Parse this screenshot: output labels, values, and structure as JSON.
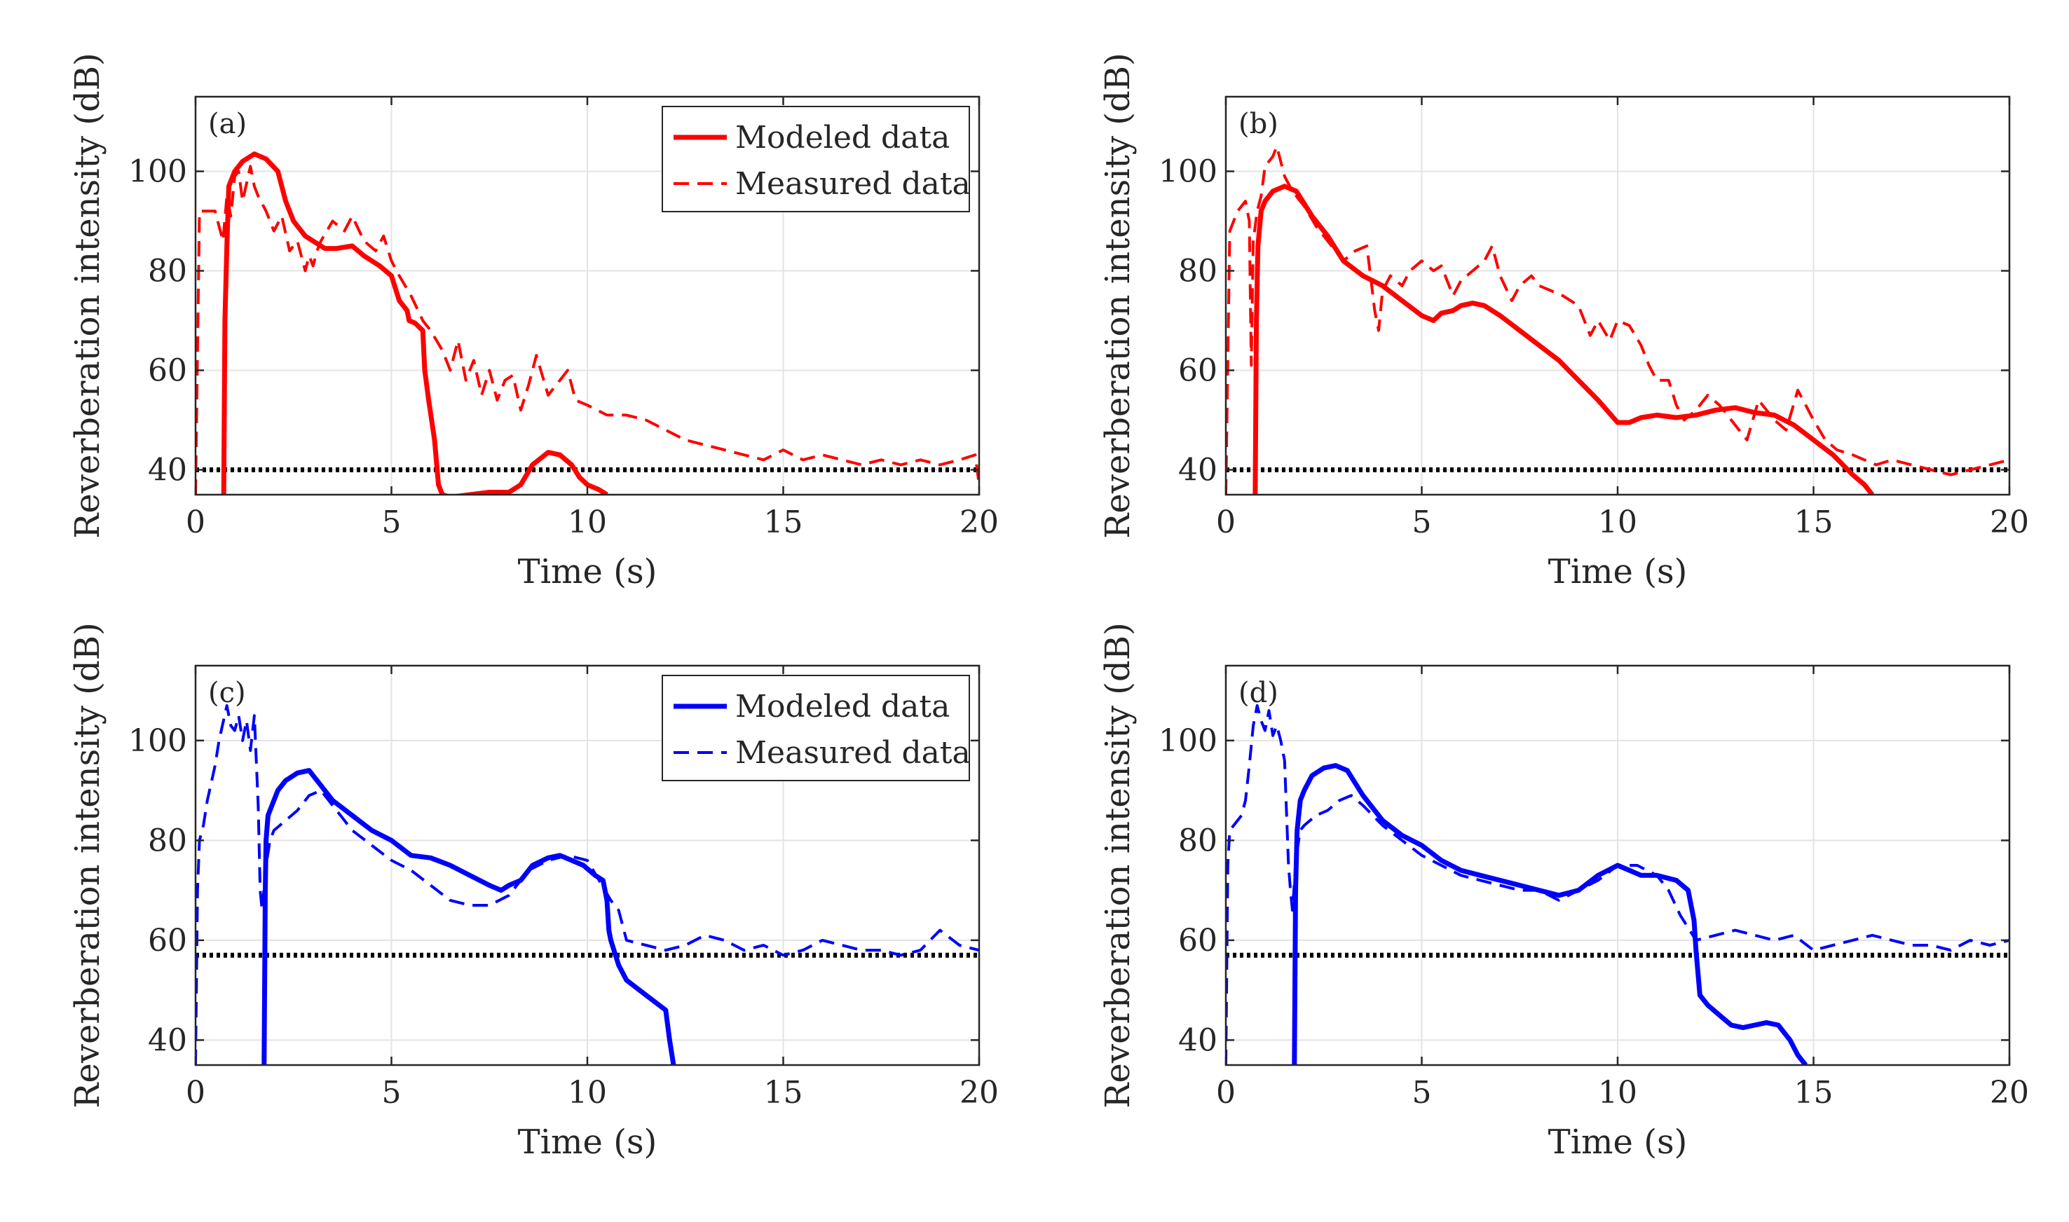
{
  "figure": {
    "panel_count": 4
  },
  "chart_data": [
    {
      "type": "line",
      "panel_label": "(a)",
      "xlabel": "Time (s)",
      "ylabel": "Reverberation intensity (dB)",
      "xlim": [
        0,
        20
      ],
      "ylim": [
        35,
        115
      ],
      "xticks": [
        0,
        5,
        10,
        15,
        20
      ],
      "yticks": [
        40,
        60,
        80,
        100
      ],
      "grid": true,
      "legend": {
        "placement": "top-right",
        "entries": [
          "Modeled data",
          "Measured data"
        ]
      },
      "color": "#ff0000",
      "threshold": 40,
      "series": [
        {
          "name": "Modeled data",
          "style": "solid",
          "x": [
            0.72,
            0.75,
            0.8,
            0.85,
            1.0,
            1.2,
            1.5,
            1.8,
            2.1,
            2.3,
            2.5,
            2.8,
            3.0,
            3.3,
            3.6,
            4.0,
            4.3,
            4.7,
            5.0,
            5.2,
            5.4,
            5.45,
            5.6,
            5.8,
            5.85,
            5.95,
            6.1,
            6.2,
            6.3,
            6.5,
            7.0,
            7.5,
            8.0,
            8.3,
            8.6,
            9.0,
            9.3,
            9.6,
            9.8,
            10.0,
            10.3,
            10.5
          ],
          "y": [
            35,
            70,
            85,
            97,
            100,
            102,
            103.5,
            102.5,
            100,
            94,
            90,
            87,
            86,
            84.5,
            84.5,
            85,
            83,
            81,
            79,
            74,
            72,
            70,
            69.5,
            68,
            60,
            54,
            46,
            37,
            35,
            34.5,
            35,
            35.5,
            35.5,
            37,
            41,
            43.5,
            43,
            41,
            38.5,
            37,
            36,
            35
          ]
        },
        {
          "name": "Measured data",
          "style": "dashed",
          "x": [
            0.0,
            0.1,
            0.2,
            0.5,
            0.6,
            0.7,
            0.8,
            0.9,
            1.0,
            1.1,
            1.2,
            1.4,
            1.5,
            1.6,
            1.8,
            2.0,
            2.2,
            2.4,
            2.6,
            2.8,
            2.9,
            3.0,
            3.1,
            3.2,
            3.5,
            3.8,
            4.0,
            4.3,
            4.6,
            4.8,
            5.0,
            5.2,
            5.5,
            5.8,
            6.0,
            6.3,
            6.5,
            6.7,
            6.9,
            7.1,
            7.3,
            7.5,
            7.7,
            7.9,
            8.1,
            8.3,
            8.5,
            8.7,
            9.0,
            9.2,
            9.5,
            9.7,
            10.0,
            10.5,
            11.0,
            11.5,
            12.0,
            12.5,
            13.0,
            13.5,
            14.0,
            14.5,
            15.0,
            15.5,
            16.0,
            16.5,
            17.0,
            17.5,
            18.0,
            18.5,
            19.0,
            19.5,
            19.9,
            20.0
          ],
          "y": [
            35,
            92,
            92,
            92,
            89,
            86,
            95,
            91,
            99,
            100,
            94,
            101,
            97,
            95,
            92,
            88,
            91,
            84,
            86,
            80,
            83,
            81,
            84,
            86,
            90,
            88,
            91,
            86,
            84,
            87,
            82,
            79,
            75,
            70,
            68,
            64,
            60,
            66,
            58,
            62,
            55,
            60,
            54,
            58,
            59,
            52,
            57,
            63,
            55,
            57,
            60,
            54,
            53,
            51,
            51,
            50,
            48,
            46,
            45,
            44,
            43,
            42,
            44,
            42,
            43,
            42,
            41,
            42,
            41,
            42,
            41,
            42,
            43,
            37
          ]
        }
      ]
    },
    {
      "type": "line",
      "panel_label": "(b)",
      "xlabel": "Time (s)",
      "ylabel": "Reverberation intensity (dB)",
      "xlim": [
        0,
        20
      ],
      "ylim": [
        35,
        115
      ],
      "xticks": [
        0,
        5,
        10,
        15,
        20
      ],
      "yticks": [
        40,
        60,
        80,
        100
      ],
      "grid": true,
      "color": "#ff0000",
      "threshold": 40,
      "series": [
        {
          "name": "Modeled data",
          "style": "solid",
          "x": [
            0.75,
            0.78,
            0.82,
            0.9,
            1.0,
            1.2,
            1.5,
            1.8,
            2.2,
            2.6,
            3.0,
            3.5,
            4.0,
            4.5,
            5.0,
            5.3,
            5.5,
            5.8,
            6.0,
            6.3,
            6.6,
            7.0,
            7.5,
            8.0,
            8.5,
            9.0,
            9.5,
            10.0,
            10.3,
            10.6,
            11.0,
            11.5,
            12.0,
            12.5,
            13.0,
            13.5,
            14.0,
            14.5,
            15.0,
            15.5,
            16.0,
            16.3,
            16.5
          ],
          "y": [
            35,
            70,
            85,
            92,
            94,
            96,
            97,
            96,
            91,
            87,
            82,
            79,
            77,
            74,
            71,
            70,
            71.5,
            72,
            73,
            73.5,
            73,
            71,
            68,
            65,
            62,
            58,
            54,
            49.5,
            49.5,
            50.5,
            51,
            50.5,
            51,
            52,
            52.5,
            51.5,
            51,
            49,
            46,
            43,
            39,
            37,
            35
          ]
        },
        {
          "name": "Measured data",
          "style": "dashed",
          "x": [
            0.0,
            0.1,
            0.3,
            0.5,
            0.6,
            0.65,
            0.7,
            0.8,
            0.9,
            1.0,
            1.2,
            1.3,
            1.5,
            1.7,
            2.0,
            2.3,
            2.6,
            3.0,
            3.3,
            3.6,
            3.8,
            3.9,
            4.0,
            4.2,
            4.5,
            4.7,
            5.0,
            5.3,
            5.5,
            5.8,
            6.0,
            6.3,
            6.6,
            6.8,
            7.0,
            7.3,
            7.5,
            7.8,
            8.0,
            8.3,
            8.6,
            9.0,
            9.3,
            9.5,
            9.8,
            10.0,
            10.3,
            10.6,
            10.8,
            11.0,
            11.3,
            11.5,
            11.7,
            12.0,
            12.3,
            12.6,
            13.0,
            13.3,
            13.6,
            14.0,
            14.3,
            14.6,
            14.8,
            15.0,
            15.3,
            15.6,
            16.0,
            16.3,
            16.6,
            17.0,
            17.5,
            18.0,
            18.5,
            19.0,
            19.5,
            20.0
          ],
          "y": [
            35,
            88,
            92,
            94,
            90,
            61,
            86,
            92,
            95,
            101,
            103,
            105,
            99,
            96,
            93,
            89,
            86,
            82,
            84,
            85,
            72,
            68,
            76,
            79,
            77,
            80,
            82,
            80,
            81,
            75,
            78,
            80,
            82,
            85,
            79,
            74,
            77,
            79,
            77,
            76,
            75,
            73,
            67,
            70,
            66,
            70,
            69,
            65,
            61,
            58,
            58,
            53,
            50,
            52,
            55,
            53,
            49,
            46,
            54,
            50,
            48,
            56,
            53,
            50,
            46,
            44,
            43,
            42,
            41,
            42,
            41,
            40,
            39,
            40,
            41,
            42
          ]
        }
      ]
    },
    {
      "type": "line",
      "panel_label": "(c)",
      "xlabel": "Time (s)",
      "ylabel": "Reverberation intensity (dB)",
      "xlim": [
        0,
        20
      ],
      "ylim": [
        35,
        115
      ],
      "xticks": [
        0,
        5,
        10,
        15,
        20
      ],
      "yticks": [
        40,
        60,
        80,
        100
      ],
      "grid": true,
      "legend": {
        "placement": "top-right",
        "entries": [
          "Modeled data",
          "Measured data"
        ]
      },
      "color": "#0000ff",
      "threshold": 57,
      "series": [
        {
          "name": "Modeled data",
          "style": "solid",
          "x": [
            1.75,
            1.78,
            1.8,
            1.85,
            1.95,
            2.1,
            2.3,
            2.6,
            2.9,
            3.2,
            3.5,
            4.0,
            4.5,
            5.0,
            5.5,
            6.0,
            6.5,
            7.0,
            7.5,
            7.8,
            8.0,
            8.3,
            8.6,
            9.0,
            9.3,
            9.6,
            9.9,
            10.2,
            10.4,
            10.5,
            10.55,
            10.6,
            10.8,
            11.0,
            11.5,
            12.0,
            12.1,
            12.2
          ],
          "y": [
            35,
            70,
            80,
            85,
            87,
            90,
            92,
            93.5,
            94,
            91,
            88,
            85,
            82,
            80,
            77,
            76.5,
            75,
            73,
            71,
            70,
            71,
            72,
            75,
            76.5,
            77,
            76,
            75,
            73,
            72,
            68,
            62,
            60,
            55,
            52,
            49,
            46,
            40,
            35
          ]
        },
        {
          "name": "Measured data",
          "style": "dashed",
          "x": [
            0.0,
            0.05,
            0.1,
            0.2,
            0.3,
            0.5,
            0.6,
            0.8,
            0.9,
            1.0,
            1.1,
            1.2,
            1.3,
            1.4,
            1.5,
            1.6,
            1.65,
            1.7,
            1.8,
            1.9,
            2.0,
            2.3,
            2.6,
            2.9,
            3.2,
            3.5,
            4.0,
            4.5,
            5.0,
            5.5,
            6.0,
            6.5,
            7.0,
            7.5,
            8.0,
            8.5,
            9.0,
            9.5,
            10.0,
            10.3,
            10.6,
            10.8,
            11.0,
            11.5,
            12.0,
            12.5,
            13.0,
            13.5,
            14.0,
            14.5,
            15.0,
            15.5,
            16.0,
            16.5,
            17.0,
            17.5,
            18.0,
            18.5,
            19.0,
            19.5,
            20.0
          ],
          "y": [
            35,
            70,
            80,
            83,
            88,
            95,
            100,
            107,
            103,
            102,
            105,
            100,
            104,
            98,
            105,
            87,
            70,
            66,
            75,
            80,
            82,
            84,
            86,
            89,
            90,
            87,
            82,
            79,
            76,
            74,
            71,
            68,
            67,
            67,
            69,
            74,
            76,
            77,
            76,
            72,
            68,
            66,
            60,
            59,
            58,
            59,
            61,
            60,
            58,
            59,
            57,
            58,
            60,
            59,
            58,
            58,
            57,
            58,
            62,
            59,
            58
          ]
        }
      ]
    },
    {
      "type": "line",
      "panel_label": "(d)",
      "xlabel": "Time (s)",
      "ylabel": "Reverberation intensity (dB)",
      "xlim": [
        0,
        20
      ],
      "ylim": [
        35,
        115
      ],
      "xticks": [
        0,
        5,
        10,
        15,
        20
      ],
      "yticks": [
        40,
        60,
        80,
        100
      ],
      "grid": true,
      "color": "#0000ff",
      "threshold": 57,
      "series": [
        {
          "name": "Modeled data",
          "style": "solid",
          "x": [
            1.75,
            1.78,
            1.82,
            1.9,
            2.0,
            2.2,
            2.5,
            2.8,
            3.1,
            3.5,
            4.0,
            4.5,
            5.0,
            5.5,
            6.0,
            6.5,
            7.0,
            7.5,
            8.0,
            8.5,
            9.0,
            9.5,
            10.0,
            10.3,
            10.6,
            11.0,
            11.5,
            11.8,
            11.95,
            12.0,
            12.1,
            12.3,
            12.6,
            12.9,
            13.2,
            13.5,
            13.8,
            14.1,
            14.4,
            14.6,
            14.8
          ],
          "y": [
            35,
            70,
            82,
            88,
            90,
            93,
            94.5,
            95,
            94,
            89,
            84,
            81,
            79,
            76,
            74,
            73,
            72,
            71,
            70,
            69,
            70,
            73,
            75,
            74,
            73,
            73,
            72,
            70,
            64,
            58,
            49,
            47,
            45,
            43,
            42.5,
            43,
            43.5,
            43,
            40,
            37,
            35
          ]
        },
        {
          "name": "Measured data",
          "style": "dashed",
          "x": [
            0.0,
            0.05,
            0.1,
            0.2,
            0.4,
            0.5,
            0.6,
            0.7,
            0.8,
            0.9,
            1.0,
            1.1,
            1.2,
            1.3,
            1.4,
            1.5,
            1.6,
            1.65,
            1.7,
            1.8,
            1.9,
            2.0,
            2.3,
            2.6,
            2.9,
            3.2,
            3.5,
            4.0,
            4.5,
            5.0,
            5.5,
            6.0,
            6.5,
            7.0,
            7.5,
            8.0,
            8.5,
            9.0,
            9.5,
            10.0,
            10.5,
            11.0,
            11.3,
            11.6,
            12.0,
            12.5,
            13.0,
            13.5,
            14.0,
            14.5,
            15.0,
            15.5,
            16.0,
            16.5,
            17.0,
            17.5,
            18.0,
            18.5,
            19.0,
            19.5,
            20.0
          ],
          "y": [
            35,
            75,
            82,
            83,
            85,
            88,
            95,
            103,
            107,
            104,
            102,
            106,
            101,
            103,
            100,
            96,
            75,
            70,
            66,
            77,
            82,
            83,
            85,
            86,
            88,
            89,
            87,
            83,
            80,
            77,
            75,
            73,
            72,
            71,
            70,
            70,
            68,
            70,
            72,
            75,
            75,
            73,
            70,
            65,
            60,
            61,
            62,
            61,
            60,
            61,
            58,
            59,
            60,
            61,
            60,
            59,
            59,
            58,
            60,
            59,
            60
          ]
        }
      ]
    }
  ]
}
